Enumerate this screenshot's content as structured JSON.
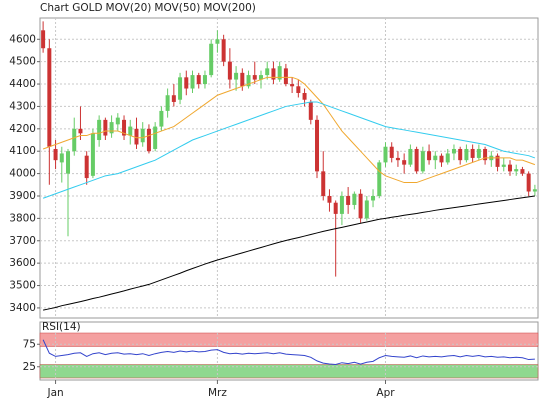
{
  "chart_data": [
    {
      "type": "candlestick",
      "title": "Chart GOLD",
      "title_color": "#cc3333",
      "categories": [
        null,
        null,
        "Jan",
        null,
        null,
        null,
        null,
        null,
        null,
        null,
        null,
        null,
        null,
        null,
        null,
        null,
        null,
        null,
        null,
        null,
        null,
        null,
        null,
        null,
        null,
        null,
        null,
        null,
        "Mrz",
        null,
        null,
        null,
        null,
        null,
        null,
        null,
        null,
        null,
        null,
        null,
        null,
        null,
        null,
        null,
        null,
        null,
        null,
        null,
        null,
        null,
        null,
        null,
        null,
        null,
        null,
        "Apr",
        null,
        null,
        null,
        null,
        null,
        null,
        null,
        null,
        null,
        null,
        null,
        null,
        null,
        null,
        null,
        null,
        null,
        null,
        null,
        null,
        null,
        null,
        null,
        null
      ],
      "open": [
        4640,
        4560,
        4110,
        4050,
        4000,
        4100,
        4200,
        4080,
        3990,
        4150,
        4240,
        4180,
        4220,
        4240,
        4170,
        4200,
        4140,
        4200,
        4110,
        4210,
        4280,
        4350,
        4330,
        4430,
        4380,
        4440,
        4400,
        4440,
        4580,
        4600,
        4500,
        4420,
        4450,
        4390,
        4440,
        4420,
        4440,
        4470,
        4420,
        4470,
        4400,
        4390,
        4360,
        4320,
        4240,
        4010,
        3900,
        3870,
        3820,
        3900,
        3860,
        3910,
        3800,
        3880,
        3900,
        4050,
        4120,
        4070,
        4060,
        4040,
        4110,
        4010,
        4100,
        4060,
        4080,
        4050,
        4090,
        4110,
        4060,
        4110,
        4070,
        4110,
        4060,
        4080,
        4030,
        4040,
        4010,
        4020,
        4000,
        3920
      ],
      "high": [
        4680,
        4600,
        4150,
        4120,
        4110,
        4250,
        4300,
        4100,
        4200,
        4260,
        4250,
        4260,
        4270,
        4260,
        4240,
        4250,
        4230,
        4220,
        4230,
        4300,
        4380,
        4400,
        4450,
        4460,
        4460,
        4450,
        4460,
        4600,
        4640,
        4620,
        4560,
        4480,
        4470,
        4460,
        4500,
        4460,
        4500,
        4500,
        4500,
        4490,
        4430,
        4420,
        4380,
        4330,
        4260,
        4100,
        3930,
        3880,
        3920,
        3940,
        3920,
        3930,
        3900,
        3930,
        4060,
        4140,
        4140,
        4100,
        4090,
        4130,
        4120,
        4120,
        4130,
        4100,
        4090,
        4110,
        4130,
        4120,
        4130,
        4130,
        4130,
        4120,
        4100,
        4090,
        4070,
        4060,
        4040,
        4030,
        4010,
        3950
      ],
      "low": [
        4540,
        3950,
        4020,
        3960,
        3720,
        4080,
        4150,
        3950,
        3980,
        4120,
        4150,
        4160,
        4190,
        4150,
        4130,
        4110,
        4120,
        4090,
        4100,
        4190,
        4250,
        4300,
        4310,
        4350,
        4360,
        4380,
        4380,
        4430,
        4540,
        4480,
        4380,
        4370,
        4370,
        4380,
        4400,
        4380,
        4420,
        4400,
        4410,
        4390,
        4360,
        4340,
        4300,
        4220,
        3980,
        3880,
        3830,
        3540,
        3770,
        3820,
        3840,
        3780,
        3790,
        3850,
        3890,
        4030,
        4050,
        4030,
        4000,
        4030,
        4000,
        4000,
        4040,
        4020,
        4030,
        4040,
        4060,
        4040,
        4050,
        4050,
        4060,
        4040,
        4030,
        4010,
        4010,
        3990,
        3990,
        3990,
        3900,
        3900
      ],
      "close": [
        4560,
        4120,
        4060,
        4090,
        4100,
        4200,
        4180,
        3980,
        4180,
        4240,
        4170,
        4230,
        4250,
        4170,
        4210,
        4130,
        4200,
        4100,
        4210,
        4280,
        4350,
        4320,
        4430,
        4380,
        4440,
        4400,
        4440,
        4580,
        4600,
        4500,
        4420,
        4450,
        4390,
        4440,
        4420,
        4440,
        4470,
        4420,
        4480,
        4400,
        4390,
        4360,
        4330,
        4240,
        4010,
        3900,
        3870,
        3820,
        3900,
        3860,
        3910,
        3800,
        3880,
        3900,
        4050,
        4120,
        4070,
        4060,
        4040,
        4110,
        4010,
        4100,
        4060,
        4080,
        4050,
        4090,
        4110,
        4060,
        4110,
        4070,
        4110,
        4060,
        4080,
        4030,
        4040,
        4010,
        4020,
        4000,
        3920,
        3930
      ],
      "up_color": "#66cc66",
      "down_color": "#cc3333",
      "series": [
        {
          "name": "MOV(20)",
          "color": "#f0a830",
          "values": [
            4110,
            4120,
            4130,
            4140,
            4150,
            4160,
            4170,
            4170,
            4180,
            4180,
            4190,
            4190,
            4190,
            4180,
            4170,
            4160,
            4160,
            4170,
            4180,
            4190,
            4200,
            4210,
            4230,
            4250,
            4270,
            4290,
            4310,
            4330,
            4350,
            4360,
            4370,
            4380,
            4390,
            4400,
            4410,
            4420,
            4430,
            4430,
            4430,
            4430,
            4430,
            4420,
            4400,
            4370,
            4340,
            4310,
            4270,
            4230,
            4190,
            4160,
            4130,
            4100,
            4070,
            4040,
            4010,
            3990,
            3980,
            3970,
            3960,
            3960,
            3960,
            3970,
            3980,
            3990,
            4000,
            4010,
            4020,
            4030,
            4040,
            4050,
            4060,
            4070,
            4070,
            4070,
            4070,
            4070,
            4060,
            4060,
            4050,
            4040
          ]
        },
        {
          "name": "MOV(50)",
          "color": "#33ccee",
          "values": [
            3890,
            3900,
            3910,
            3920,
            3930,
            3940,
            3950,
            3960,
            3970,
            3980,
            3990,
            3995,
            4000,
            4010,
            4020,
            4030,
            4040,
            4050,
            4060,
            4075,
            4090,
            4105,
            4120,
            4135,
            4150,
            4160,
            4170,
            4180,
            4190,
            4200,
            4210,
            4220,
            4230,
            4240,
            4250,
            4260,
            4270,
            4280,
            4290,
            4300,
            4305,
            4310,
            4315,
            4320,
            4320,
            4310,
            4300,
            4290,
            4280,
            4270,
            4260,
            4250,
            4240,
            4230,
            4220,
            4210,
            4205,
            4200,
            4195,
            4190,
            4185,
            4180,
            4175,
            4170,
            4165,
            4160,
            4155,
            4150,
            4145,
            4140,
            4135,
            4130,
            4120,
            4110,
            4100,
            4095,
            4090,
            4085,
            4080,
            4070
          ]
        },
        {
          "name": "MOV(200)",
          "color": "#000000",
          "values": [
            3390,
            3396,
            3402,
            3410,
            3416,
            3422,
            3428,
            3435,
            3442,
            3448,
            3455,
            3462,
            3469,
            3476,
            3484,
            3491,
            3498,
            3505,
            3515,
            3525,
            3535,
            3545,
            3555,
            3566,
            3576,
            3586,
            3596,
            3605,
            3614,
            3622,
            3630,
            3638,
            3646,
            3654,
            3662,
            3670,
            3678,
            3686,
            3694,
            3701,
            3708,
            3714,
            3721,
            3728,
            3735,
            3742,
            3748,
            3754,
            3760,
            3766,
            3772,
            3778,
            3784,
            3790,
            3796,
            3800,
            3805,
            3809,
            3814,
            3818,
            3822,
            3827,
            3831,
            3836,
            3840,
            3844,
            3848,
            3852,
            3856,
            3860,
            3864,
            3868,
            3872,
            3876,
            3880,
            3884,
            3888,
            3892,
            3896,
            3900
          ]
        }
      ],
      "ylim": [
        3355,
        4695
      ],
      "yticks": [
        3400,
        3500,
        3600,
        3700,
        3800,
        3900,
        4000,
        4100,
        4200,
        4300,
        4400,
        4500,
        4600
      ],
      "grid": true
    },
    {
      "type": "line",
      "title": "RSI(14)",
      "color": "#3344cc",
      "values": [
        85,
        55,
        48,
        50,
        52,
        55,
        56,
        48,
        54,
        56,
        52,
        55,
        56,
        53,
        54,
        52,
        54,
        50,
        54,
        57,
        59,
        57,
        60,
        58,
        60,
        58,
        59,
        62,
        63,
        57,
        54,
        55,
        53,
        55,
        54,
        55,
        56,
        54,
        56,
        53,
        52,
        51,
        50,
        46,
        38,
        33,
        31,
        30,
        34,
        32,
        35,
        31,
        35,
        37,
        45,
        50,
        48,
        47,
        46,
        49,
        45,
        49,
        47,
        48,
        47,
        49,
        50,
        47,
        50,
        48,
        50,
        47,
        48,
        46,
        47,
        45,
        46,
        45,
        41,
        42
      ],
      "bands": [
        {
          "from": 70,
          "to": 100,
          "color": "#f4a0a0"
        },
        {
          "from": 0,
          "to": 30,
          "color": "#8fd88f"
        }
      ],
      "ylim": [
        0,
        100
      ],
      "yticks": [
        25,
        75
      ],
      "grid": true
    }
  ]
}
